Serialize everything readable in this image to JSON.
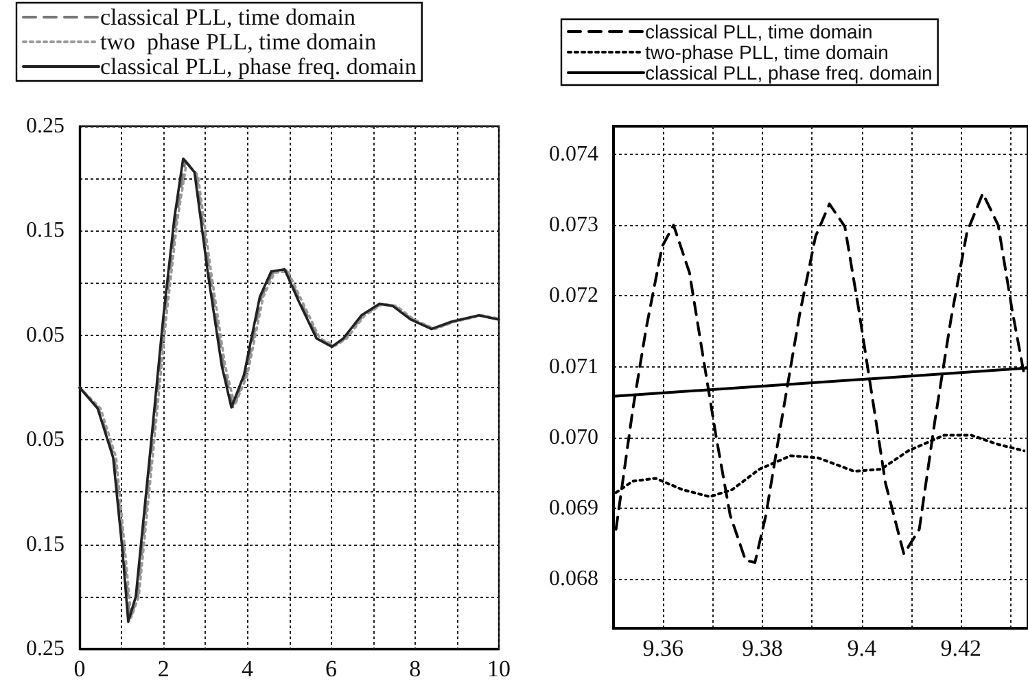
{
  "chart_data": [
    {
      "type": "line",
      "xlim": [
        0,
        10
      ],
      "ylim": [
        -0.25,
        0.25
      ],
      "xticks": [
        0,
        {
          "value": 1,
          "label": null
        },
        2,
        {
          "value": 3,
          "label": null
        },
        4,
        {
          "value": 5,
          "label": null
        },
        6,
        {
          "value": 7,
          "label": null
        },
        8,
        {
          "value": 9,
          "label": null
        },
        10
      ],
      "yticks": [
        {
          "value": -0.25,
          "label": "0.25"
        },
        {
          "value": -0.2,
          "label": null
        },
        {
          "value": -0.15,
          "label": "0.15"
        },
        {
          "value": -0.1,
          "label": null
        },
        {
          "value": -0.05,
          "label": "0.05"
        },
        {
          "value": 0,
          "label": null
        },
        {
          "value": 0.05,
          "label": "0.05"
        },
        {
          "value": 0.1,
          "label": null
        },
        {
          "value": 0.15,
          "label": "0.15"
        },
        {
          "value": 0.2,
          "label": null
        },
        {
          "value": 0.25,
          "label": "0.25"
        }
      ],
      "grid": true,
      "legend": "top",
      "marker": "none",
      "series": [
        {
          "name": "classical PLL, time domain",
          "color": "#777777",
          "line_style": "dashed",
          "x": [
            0,
            0.45,
            0.83,
            1.05,
            1.2,
            1.38,
            1.7,
            2.02,
            2.3,
            2.52,
            2.78,
            3.1,
            3.43,
            3.66,
            3.96,
            4.34,
            4.61,
            4.93,
            5.26,
            5.69,
            6.06,
            6.33,
            6.76,
            7.19,
            7.51,
            7.94,
            8.43,
            8.91,
            9.56,
            10
          ],
          "values": [
            0,
            -0.02,
            -0.067,
            -0.155,
            -0.222,
            -0.2,
            -0.067,
            0.065,
            0.16,
            0.217,
            0.205,
            0.109,
            0.021,
            -0.019,
            0.012,
            0.087,
            0.11,
            0.112,
            0.083,
            0.047,
            0.039,
            0.047,
            0.069,
            0.08,
            0.078,
            0.065,
            0.056,
            0.063,
            0.069,
            0.065
          ]
        },
        {
          "name": "two  phase PLL, time domain",
          "color": "#999999",
          "line_style": "dotted",
          "x": [
            0,
            0.5,
            0.87,
            1.08,
            1.23,
            1.41,
            1.74,
            2.06,
            2.33,
            2.55,
            2.82,
            3.14,
            3.47,
            3.7,
            4.0,
            4.38,
            4.65,
            4.97,
            5.3,
            5.73,
            6.1,
            6.37,
            6.8,
            7.23,
            7.55,
            7.98,
            8.47,
            8.95,
            9.6,
            10
          ],
          "values": [
            0,
            -0.02,
            -0.067,
            -0.155,
            -0.22,
            -0.2,
            -0.067,
            0.065,
            0.16,
            0.215,
            0.203,
            0.109,
            0.021,
            -0.017,
            0.012,
            0.087,
            0.11,
            0.111,
            0.083,
            0.047,
            0.04,
            0.047,
            0.069,
            0.08,
            0.078,
            0.065,
            0.056,
            0.063,
            0.069,
            0.066
          ]
        },
        {
          "name": "classical PLL, phase freq. domain",
          "color": "#222222",
          "line_style": "solid",
          "x": [
            0,
            0.43,
            0.8,
            1.02,
            1.16,
            1.34,
            1.67,
            1.99,
            2.26,
            2.47,
            2.74,
            3.06,
            3.39,
            3.62,
            3.92,
            4.3,
            4.57,
            4.89,
            5.22,
            5.65,
            6.02,
            6.29,
            6.72,
            7.15,
            7.47,
            7.9,
            8.39,
            8.87,
            9.52,
            10
          ],
          "values": [
            0,
            -0.02,
            -0.067,
            -0.155,
            -0.224,
            -0.2,
            -0.067,
            0.065,
            0.162,
            0.219,
            0.206,
            0.109,
            0.021,
            -0.019,
            0.012,
            0.087,
            0.111,
            0.113,
            0.083,
            0.047,
            0.039,
            0.047,
            0.069,
            0.08,
            0.078,
            0.065,
            0.056,
            0.063,
            0.069,
            0.065
          ]
        }
      ]
    },
    {
      "type": "line",
      "xlim": [
        9.35,
        9.4335
      ],
      "ylim": [
        0.0673,
        0.0744
      ],
      "xticks": [
        9.36,
        {
          "value": 9.37,
          "label": null
        },
        9.38,
        {
          "value": 9.39,
          "label": null
        },
        {
          "value": 9.4,
          "label": "9.4"
        },
        {
          "value": 9.41,
          "label": null
        },
        9.42,
        {
          "value": 9.43,
          "label": null
        }
      ],
      "yticks": [
        {
          "value": 0.068,
          "label": "0.068"
        },
        {
          "value": 0.069,
          "label": "0.069"
        },
        {
          "value": 0.07,
          "label": "0.070"
        },
        {
          "value": 0.071,
          "label": "0.071"
        },
        {
          "value": 0.072,
          "label": "0.072"
        },
        {
          "value": 0.073,
          "label": "0.073"
        },
        {
          "value": 0.074,
          "label": "0.074"
        }
      ],
      "grid": true,
      "legend": "top",
      "marker": "none",
      "series": [
        {
          "name": "classical PLL, time domain",
          "color": "#000000",
          "line_style": "dashed",
          "x": [
            9.3505,
            9.3539,
            9.3566,
            9.3598,
            9.3621,
            9.3653,
            9.368,
            9.3707,
            9.3735,
            9.3766,
            9.3785,
            9.3807,
            9.3839,
            9.3875,
            9.3907,
            9.3935,
            9.3966,
            9.3994,
            9.4021,
            9.4048,
            9.4085,
            9.4116,
            9.4148,
            9.418,
            9.4212,
            9.4244,
            9.4275,
            9.4303,
            9.4327
          ],
          "values": [
            0.0687,
            0.0704,
            0.07155,
            0.0727,
            0.073,
            0.07233,
            0.07116,
            0.07,
            0.0689,
            0.06826,
            0.06823,
            0.0689,
            0.07026,
            0.07174,
            0.07284,
            0.0733,
            0.07298,
            0.07181,
            0.07058,
            0.06935,
            0.06835,
            0.0687,
            0.07026,
            0.07168,
            0.0729,
            0.07345,
            0.073,
            0.0718,
            0.0709
          ]
        },
        {
          "name": "two-phase PLL, time domain",
          "color": "#000000",
          "line_style": "dotted",
          "x": [
            9.3505,
            9.3539,
            9.3585,
            9.3639,
            9.3694,
            9.3739,
            9.3794,
            9.3857,
            9.3912,
            9.3985,
            9.4039,
            9.4094,
            9.4166,
            9.4221,
            9.4275,
            9.4327
          ],
          "values": [
            0.06922,
            0.06938,
            0.06942,
            0.06926,
            0.06916,
            0.06926,
            0.06955,
            0.06974,
            0.06971,
            0.06952,
            0.06955,
            0.06981,
            0.07003,
            0.07003,
            0.0699,
            0.06981
          ]
        },
        {
          "name": "classical PLL, phase freq. domain",
          "color": "#000000",
          "line_style": "solid",
          "x": [
            9.35,
            9.4335
          ],
          "values": [
            0.07058,
            0.07098
          ]
        }
      ]
    }
  ]
}
